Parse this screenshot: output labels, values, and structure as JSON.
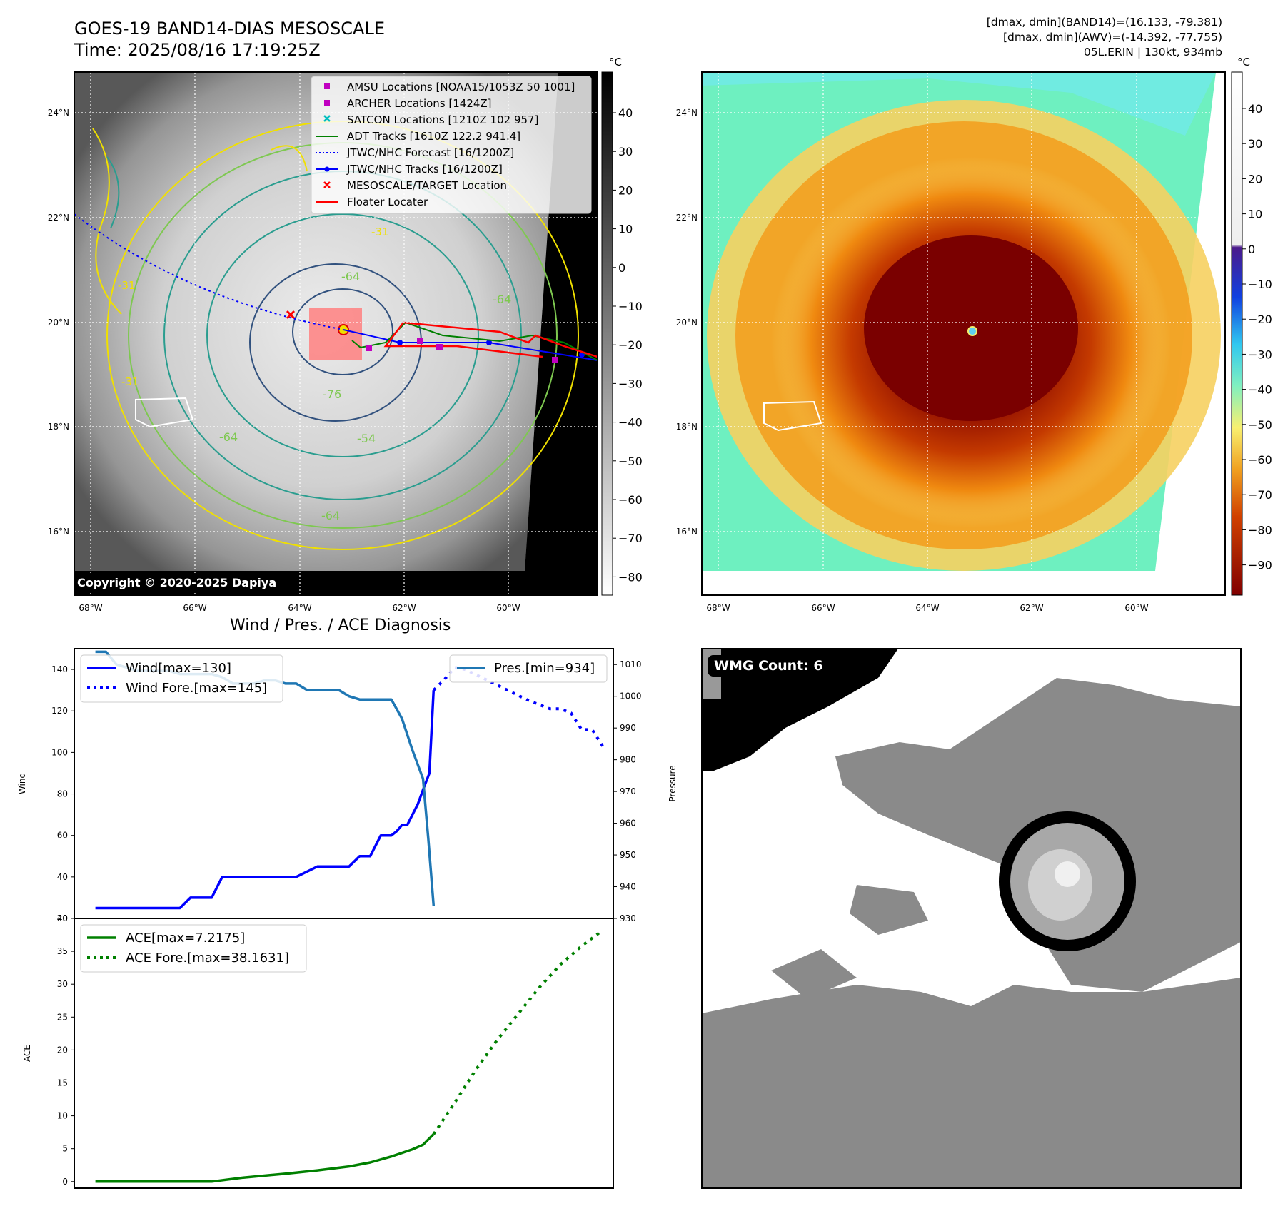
{
  "header": {
    "title_line1": "GOES-19 BAND14-DIAS MESOSCALE",
    "title_line2": "Time: 2025/08/16 17:19:25Z",
    "info_line1": "[dmax, dmin](BAND14)=(16.133, -79.381)",
    "info_line2": "[dmax, dmin](AWV)=(-14.392, -77.755)",
    "info_line3": "05L.ERIN | 130kt, 934mb"
  },
  "map": {
    "lon_labels": [
      "68°W",
      "66°W",
      "64°W",
      "62°W",
      "60°W"
    ],
    "lat_labels": [
      "24°N",
      "22°N",
      "20°N",
      "18°N",
      "16°N"
    ],
    "copyright": "Copyright © 2020-2025 Dapiya",
    "legend": [
      {
        "label": "AMSU Locations [NOAA15/1053Z 50 1001]",
        "color": "#c000c0",
        "marker": "square"
      },
      {
        "label": "ARCHER Locations [1424Z]",
        "color": "#c000c0",
        "marker": "square"
      },
      {
        "label": "SATCON Locations [1210Z 102 957]",
        "color": "#00bfbf",
        "marker": "x"
      },
      {
        "label": "ADT Tracks [1610Z 122.2 941.4]",
        "color": "#008000",
        "marker": "line"
      },
      {
        "label": "JTWC/NHC Forecast [16/1200Z]",
        "color": "#0000ff",
        "marker": "dotted"
      },
      {
        "label": "JTWC/NHC Tracks [16/1200Z]",
        "color": "#0000ff",
        "marker": "line-dot"
      },
      {
        "label": "MESOSCALE/TARGET Location",
        "color": "#ff0000",
        "marker": "x"
      },
      {
        "label": "Floater Locater",
        "color": "#ff0000",
        "marker": "line"
      }
    ],
    "contour_labels": [
      "-64",
      "-76",
      "-64",
      "-64",
      "-54",
      "-64",
      "-31",
      "-31",
      "-31"
    ]
  },
  "colorbars": {
    "unit": "°C",
    "gray_ticks": [
      "40",
      "30",
      "20",
      "10",
      "0",
      "−10",
      "−20",
      "−30",
      "−40",
      "−50",
      "−60",
      "−70",
      "−80"
    ],
    "color_ticks": [
      "40",
      "30",
      "20",
      "10",
      "0",
      "−10",
      "−20",
      "−30",
      "−40",
      "−50",
      "−60",
      "−70",
      "−80",
      "−90"
    ]
  },
  "chart_data": [
    {
      "type": "line",
      "title": "Wind / Pres. / ACE Diagnosis",
      "ylabel": "Wind",
      "ylabel_right": "Pressure",
      "ylim": [
        20,
        150
      ],
      "ylim_right": [
        930,
        1015
      ],
      "yticks": [
        20,
        40,
        60,
        80,
        100,
        120,
        140
      ],
      "yticks_right": [
        930,
        940,
        950,
        960,
        970,
        980,
        990,
        1000,
        1010
      ],
      "xlim": [
        0,
        51
      ],
      "series": [
        {
          "name": "Wind[max=130]",
          "color": "#0000ff",
          "style": "solid",
          "axis": "left",
          "x": [
            2,
            4,
            6,
            8,
            10,
            11,
            13,
            14,
            16,
            18,
            20,
            21,
            23,
            25,
            26,
            27,
            28,
            29,
            30,
            30.5,
            31,
            31.5,
            32,
            32.5,
            33,
            33.6,
            34
          ],
          "values": [
            25,
            25,
            25,
            25,
            25,
            30,
            30,
            40,
            40,
            40,
            40,
            40,
            45,
            45,
            45,
            50,
            50,
            60,
            60,
            62,
            65,
            65,
            70,
            75,
            82,
            90,
            130
          ]
        },
        {
          "name": "Wind Fore.[max=145]",
          "color": "#0000ff",
          "style": "dotted",
          "axis": "left",
          "x": [
            34,
            35,
            36,
            37,
            39,
            41,
            43,
            45,
            46,
            47,
            48,
            49,
            50
          ],
          "values": [
            130,
            135,
            141,
            140,
            135,
            130,
            125,
            121,
            121,
            119,
            111,
            111,
            103
          ]
        },
        {
          "name": "Pres.[min=934]",
          "color": "#1f77b4",
          "style": "solid",
          "axis": "right",
          "x": [
            2,
            3,
            4,
            6,
            9,
            10,
            11,
            13,
            14,
            15,
            16,
            17,
            18,
            19,
            20,
            21,
            22,
            23,
            25,
            26,
            27,
            28,
            29,
            30,
            30.5,
            31,
            32,
            33,
            33.5,
            34
          ],
          "values": [
            1014,
            1014,
            1010,
            1008,
            1008,
            1007,
            1007,
            1007,
            1006,
            1004,
            1004,
            1004,
            1005,
            1005,
            1004,
            1004,
            1002,
            1002,
            1002,
            1000,
            999,
            999,
            999,
            999,
            996,
            993,
            983,
            974,
            955,
            934
          ]
        }
      ]
    },
    {
      "type": "line",
      "ylabel": "ACE",
      "ylim": [
        -1,
        40
      ],
      "yticks": [
        0,
        5,
        10,
        15,
        20,
        25,
        30,
        35,
        40
      ],
      "xlim": [
        0,
        51
      ],
      "series": [
        {
          "name": "ACE[max=7.2175]",
          "color": "#008000",
          "style": "solid",
          "x": [
            2,
            6,
            10,
            13,
            16,
            20,
            23,
            26,
            28,
            30,
            32,
            33,
            34
          ],
          "values": [
            0,
            0,
            0,
            0,
            0.6,
            1.2,
            1.7,
            2.3,
            2.9,
            3.8,
            4.9,
            5.6,
            7.2
          ]
        },
        {
          "name": "ACE Fore.[max=38.1631]",
          "color": "#008000",
          "style": "dotted",
          "x": [
            34,
            36,
            38,
            40,
            42,
            44,
            46,
            48,
            50
          ],
          "values": [
            7.2,
            12,
            17,
            21.5,
            25.5,
            29.5,
            33,
            35.8,
            38.2
          ]
        }
      ]
    }
  ],
  "wmg": {
    "badge": "WMG Count: 6"
  }
}
